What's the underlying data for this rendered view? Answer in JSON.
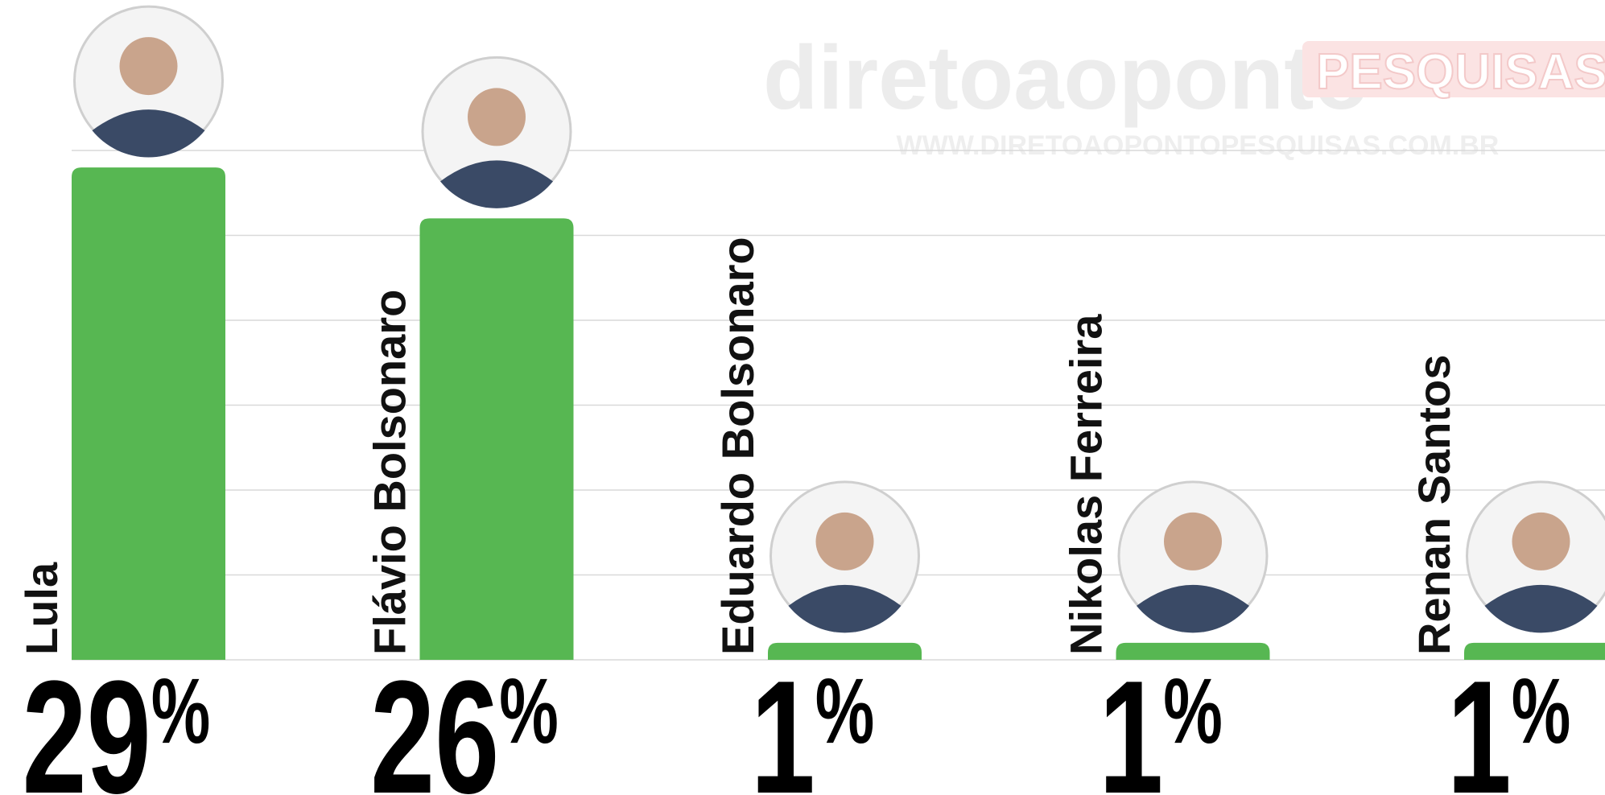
{
  "chart_data": {
    "type": "bar",
    "categories": [
      "Lula",
      "Flávio Bolsonaro",
      "Eduardo Bolsonaro",
      "Nikolas Ferreira",
      "Renan Santos"
    ],
    "values": [
      29,
      26,
      1,
      1,
      1
    ],
    "value_labels": [
      "29%",
      "26%",
      "1%",
      "1%",
      "1%"
    ],
    "color": "#57b752",
    "ylim": [
      0,
      30
    ],
    "yticks": [
      0,
      5,
      10,
      15,
      20,
      25,
      30
    ],
    "grid": true
  },
  "watermark": {
    "brand": "diretoaoponto",
    "tag": "PESQUISAS",
    "url": "WWW.DIRETOAOPONTOPESQUISAS.COM.BR"
  }
}
